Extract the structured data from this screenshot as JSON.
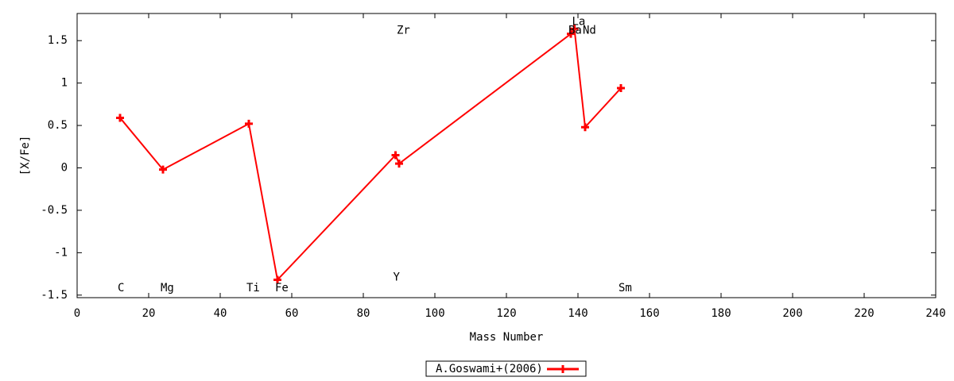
{
  "chart_data": {
    "type": "line",
    "xlabel": "Mass Number",
    "ylabel": "[X/Fe]",
    "xlim": [
      0,
      240
    ],
    "ylim": [
      -1.53,
      1.82
    ],
    "xticks": [
      0,
      20,
      40,
      60,
      80,
      100,
      120,
      140,
      160,
      180,
      200,
      220,
      240
    ],
    "yticks": [
      -1.5,
      -1,
      -0.5,
      0,
      0.5,
      1,
      1.5
    ],
    "legend": "bottom",
    "series": [
      {
        "name": "A.Goswami+(2006)",
        "color": "#ff0000",
        "x": [
          12,
          24,
          48,
          56,
          89,
          90,
          138,
          139,
          142,
          152
        ],
        "values": [
          0.59,
          -0.02,
          0.52,
          -1.32,
          0.15,
          0.05,
          1.58,
          1.64,
          0.48,
          0.94
        ]
      }
    ],
    "annotations": [
      {
        "text": "C",
        "x": 12,
        "y": -1.42
      },
      {
        "text": "Mg",
        "x": 24,
        "y": -1.42
      },
      {
        "text": "Ti",
        "x": 48,
        "y": -1.42
      },
      {
        "text": "Fe",
        "x": 56,
        "y": -1.42
      },
      {
        "text": "Y",
        "x": 89,
        "y": -1.29
      },
      {
        "text": "Zr",
        "x": 90,
        "y": 1.62
      },
      {
        "text": "Ba",
        "x": 138,
        "y": 1.62
      },
      {
        "text": "La",
        "x": 139,
        "y": 1.72
      },
      {
        "text": "Nd",
        "x": 142,
        "y": 1.62
      },
      {
        "text": "Sm",
        "x": 152,
        "y": -1.42
      }
    ]
  }
}
